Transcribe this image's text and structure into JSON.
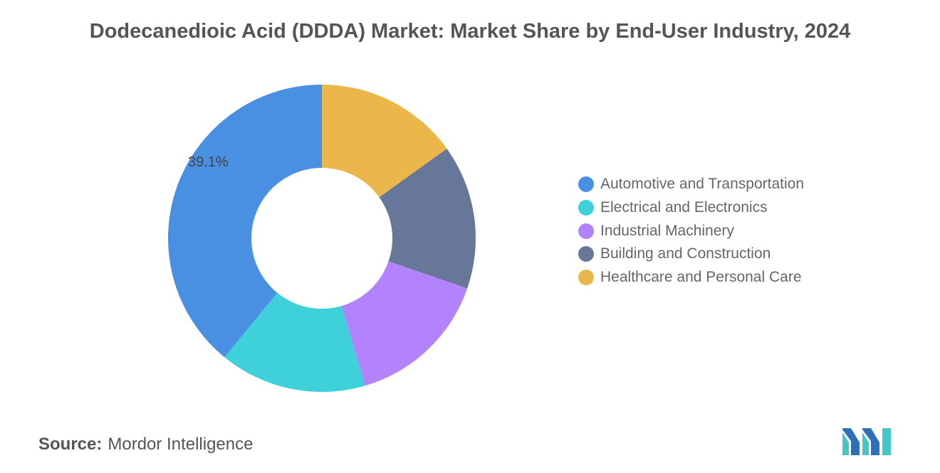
{
  "chart_data": {
    "type": "pie",
    "title": "Dodecanedioic Acid (DDDA) Market: Market Share by End-User Industry, 2024",
    "categories": [
      "Automotive and Transportation",
      "Electrical and Electronics",
      "Industrial Machinery",
      "Building and Construction",
      "Healthcare and Personal Care"
    ],
    "values": [
      39.1,
      15.4,
      15.2,
      15.2,
      15.1
    ],
    "colors": [
      "#4a90e2",
      "#3fd1d9",
      "#b283fc",
      "#667799",
      "#ebb64a"
    ],
    "data_labels": [
      "39.1%",
      "",
      "",
      "",
      ""
    ],
    "donut": true,
    "legend_position": "right"
  },
  "source": {
    "label": "Source:",
    "text": "Mordor Intelligence"
  },
  "logo": {
    "icon": "mordor-intelligence-logo-icon",
    "colors": [
      "#2f6fb5",
      "#46c7c7"
    ]
  }
}
